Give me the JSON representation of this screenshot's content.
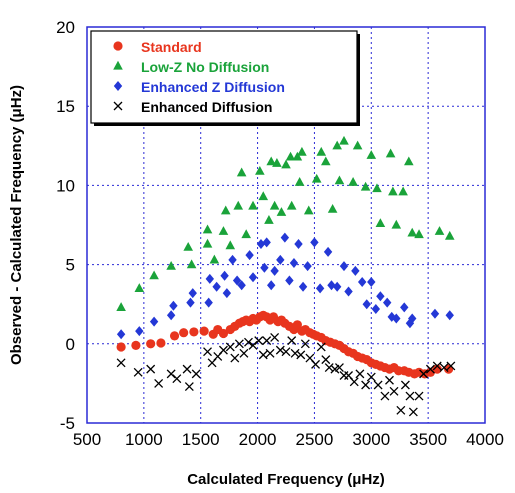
{
  "chart_data": {
    "type": "scatter",
    "xlabel": "Calculated Frequency (μHz)",
    "ylabel": "Observed - Calculated Frequency (μHz)",
    "xlim": [
      500,
      4000
    ],
    "ylim": [
      -5,
      20
    ],
    "xticks": [
      "500",
      "1000",
      "1500",
      "2000",
      "2500",
      "3000",
      "3500",
      "4000"
    ],
    "yticks": [
      "-5",
      "0",
      "5",
      "10",
      "15",
      "20"
    ],
    "grid": true,
    "legend_position": "top-left",
    "series": [
      {
        "name": "Standard",
        "color": "#e8351e",
        "marker": "circle",
        "points": [
          [
            800,
            -0.2
          ],
          [
            930,
            -0.1
          ],
          [
            1060,
            0
          ],
          [
            1150,
            0.05
          ],
          [
            1270,
            0.5
          ],
          [
            1350,
            0.7
          ],
          [
            1440,
            0.75
          ],
          [
            1530,
            0.8
          ],
          [
            1610,
            0.6
          ],
          [
            1650,
            0.9
          ],
          [
            1700,
            0.65
          ],
          [
            1760,
            0.9
          ],
          [
            1800,
            1.1
          ],
          [
            1840,
            1.3
          ],
          [
            1870,
            1.4
          ],
          [
            1900,
            1.5
          ],
          [
            1930,
            1.4
          ],
          [
            1960,
            1.6
          ],
          [
            1990,
            1.5
          ],
          [
            2020,
            1.7
          ],
          [
            2050,
            1.8
          ],
          [
            2080,
            1.7
          ],
          [
            2110,
            1.5
          ],
          [
            2140,
            1.7
          ],
          [
            2180,
            1.4
          ],
          [
            2210,
            1.5
          ],
          [
            2240,
            1.3
          ],
          [
            2280,
            1.1
          ],
          [
            2320,
            0.9
          ],
          [
            2350,
            1.2
          ],
          [
            2390,
            0.8
          ],
          [
            2420,
            0.9
          ],
          [
            2460,
            0.7
          ],
          [
            2490,
            0.6
          ],
          [
            2520,
            0.5
          ],
          [
            2560,
            0.4
          ],
          [
            2600,
            0.2
          ],
          [
            2640,
            0.1
          ],
          [
            2680,
            0
          ],
          [
            2720,
            -0.1
          ],
          [
            2760,
            -0.3
          ],
          [
            2800,
            -0.5
          ],
          [
            2840,
            -0.6
          ],
          [
            2880,
            -0.8
          ],
          [
            2920,
            -0.9
          ],
          [
            2960,
            -1.0
          ],
          [
            3000,
            -1.2
          ],
          [
            3040,
            -1.3
          ],
          [
            3080,
            -1.4
          ],
          [
            3120,
            -1.5
          ],
          [
            3160,
            -1.6
          ],
          [
            3200,
            -1.5
          ],
          [
            3240,
            -1.7
          ],
          [
            3290,
            -1.7
          ],
          [
            3330,
            -1.8
          ],
          [
            3380,
            -1.9
          ],
          [
            3420,
            -1.8
          ],
          [
            3470,
            -1.9
          ],
          [
            3520,
            -1.8
          ],
          [
            3580,
            -1.6
          ],
          [
            3680,
            -1.6
          ]
        ]
      },
      {
        "name": "Low-Z No Diffusion",
        "color": "#1aa33a",
        "marker": "triangle",
        "points": [
          [
            800,
            2.3
          ],
          [
            960,
            3.5
          ],
          [
            1090,
            4.3
          ],
          [
            1240,
            4.9
          ],
          [
            1390,
            6.1
          ],
          [
            1420,
            5.0
          ],
          [
            1560,
            6.3
          ],
          [
            1560,
            7.2
          ],
          [
            1620,
            5.3
          ],
          [
            1700,
            7.1
          ],
          [
            1720,
            8.4
          ],
          [
            1760,
            6.2
          ],
          [
            1830,
            8.7
          ],
          [
            1860,
            10.8
          ],
          [
            1900,
            6.9
          ],
          [
            1960,
            8.7
          ],
          [
            2020,
            10.9
          ],
          [
            2050,
            9.3
          ],
          [
            2100,
            7.8
          ],
          [
            2120,
            11.5
          ],
          [
            2150,
            8.7
          ],
          [
            2170,
            11.4
          ],
          [
            2210,
            8.3
          ],
          [
            2250,
            11.3
          ],
          [
            2290,
            11.8
          ],
          [
            2300,
            8.7
          ],
          [
            2350,
            11.8
          ],
          [
            2370,
            10.2
          ],
          [
            2390,
            12.1
          ],
          [
            2450,
            8.4
          ],
          [
            2520,
            10.4
          ],
          [
            2560,
            12.1
          ],
          [
            2600,
            11.5
          ],
          [
            2660,
            8.5
          ],
          [
            2700,
            12.5
          ],
          [
            2720,
            10.3
          ],
          [
            2760,
            12.8
          ],
          [
            2840,
            10.2
          ],
          [
            2880,
            12.5
          ],
          [
            2950,
            9.9
          ],
          [
            3000,
            11.9
          ],
          [
            3050,
            9.8
          ],
          [
            3080,
            7.6
          ],
          [
            3170,
            12.0
          ],
          [
            3190,
            9.6
          ],
          [
            3220,
            7.5
          ],
          [
            3280,
            9.6
          ],
          [
            3330,
            11.5
          ],
          [
            3360,
            7.0
          ],
          [
            3420,
            6.9
          ],
          [
            3600,
            7.1
          ],
          [
            3690,
            6.8
          ]
        ]
      },
      {
        "name": "Enhanced Z Diffusion",
        "color": "#2438d6",
        "marker": "diamond",
        "points": [
          [
            800,
            0.6
          ],
          [
            960,
            0.8
          ],
          [
            1090,
            1.4
          ],
          [
            1240,
            1.8
          ],
          [
            1260,
            2.4
          ],
          [
            1410,
            2.6
          ],
          [
            1430,
            3.2
          ],
          [
            1570,
            2.6
          ],
          [
            1580,
            4.1
          ],
          [
            1640,
            3.6
          ],
          [
            1710,
            4.3
          ],
          [
            1730,
            3.2
          ],
          [
            1780,
            5.3
          ],
          [
            1820,
            4.0
          ],
          [
            1860,
            3.7
          ],
          [
            1930,
            5.6
          ],
          [
            1960,
            4.2
          ],
          [
            2030,
            6.3
          ],
          [
            2060,
            4.8
          ],
          [
            2080,
            6.4
          ],
          [
            2120,
            3.7
          ],
          [
            2150,
            4.6
          ],
          [
            2200,
            5.3
          ],
          [
            2240,
            6.7
          ],
          [
            2280,
            4.0
          ],
          [
            2320,
            5.1
          ],
          [
            2360,
            6.3
          ],
          [
            2400,
            3.6
          ],
          [
            2440,
            4.9
          ],
          [
            2500,
            6.4
          ],
          [
            2550,
            3.5
          ],
          [
            2620,
            5.8
          ],
          [
            2650,
            3.7
          ],
          [
            2700,
            3.6
          ],
          [
            2760,
            4.9
          ],
          [
            2800,
            3.3
          ],
          [
            2860,
            4.6
          ],
          [
            2920,
            3.9
          ],
          [
            2960,
            2.5
          ],
          [
            3000,
            3.9
          ],
          [
            3040,
            2.2
          ],
          [
            3080,
            3.0
          ],
          [
            3140,
            2.6
          ],
          [
            3180,
            1.7
          ],
          [
            3220,
            1.6
          ],
          [
            3290,
            2.3
          ],
          [
            3340,
            1.3
          ],
          [
            3360,
            1.6
          ],
          [
            3560,
            1.9
          ],
          [
            3690,
            1.8
          ]
        ]
      },
      {
        "name": "Enhanced Diffusion",
        "color": "#000000",
        "marker": "x",
        "points": [
          [
            800,
            -1.2
          ],
          [
            950,
            -1.8
          ],
          [
            1060,
            -1.6
          ],
          [
            1130,
            -2.5
          ],
          [
            1240,
            -1.9
          ],
          [
            1290,
            -2.2
          ],
          [
            1380,
            -1.6
          ],
          [
            1400,
            -2.7
          ],
          [
            1460,
            -1.9
          ],
          [
            1560,
            -0.5
          ],
          [
            1600,
            -1.2
          ],
          [
            1650,
            -0.8
          ],
          [
            1700,
            -0.4
          ],
          [
            1760,
            -0.2
          ],
          [
            1800,
            -0.9
          ],
          [
            1840,
            0
          ],
          [
            1880,
            -0.6
          ],
          [
            1920,
            0.1
          ],
          [
            1960,
            -0.1
          ],
          [
            2010,
            0.2
          ],
          [
            2050,
            -0.7
          ],
          [
            2080,
            0.2
          ],
          [
            2110,
            -0.6
          ],
          [
            2150,
            0.4
          ],
          [
            2200,
            -0.4
          ],
          [
            2250,
            -0.5
          ],
          [
            2300,
            0.2
          ],
          [
            2330,
            -0.6
          ],
          [
            2380,
            -0.7
          ],
          [
            2420,
            0
          ],
          [
            2460,
            -0.9
          ],
          [
            2510,
            -1.3
          ],
          [
            2560,
            -0.2
          ],
          [
            2600,
            -1.0
          ],
          [
            2630,
            -1.5
          ],
          [
            2680,
            -1.6
          ],
          [
            2720,
            -1.5
          ],
          [
            2760,
            -2.0
          ],
          [
            2800,
            -2.0
          ],
          [
            2850,
            -2.4
          ],
          [
            2900,
            -1.9
          ],
          [
            2950,
            -2.6
          ],
          [
            3000,
            -2.1
          ],
          [
            3060,
            -2.6
          ],
          [
            3120,
            -3.3
          ],
          [
            3160,
            -2.3
          ],
          [
            3200,
            -3.0
          ],
          [
            3260,
            -4.2
          ],
          [
            3300,
            -2.6
          ],
          [
            3340,
            -3.3
          ],
          [
            3370,
            -4.3
          ],
          [
            3420,
            -3.3
          ],
          [
            3460,
            -1.9
          ],
          [
            3520,
            -1.6
          ],
          [
            3580,
            -1.4
          ],
          [
            3640,
            -1.5
          ],
          [
            3700,
            -1.4
          ]
        ]
      }
    ]
  }
}
